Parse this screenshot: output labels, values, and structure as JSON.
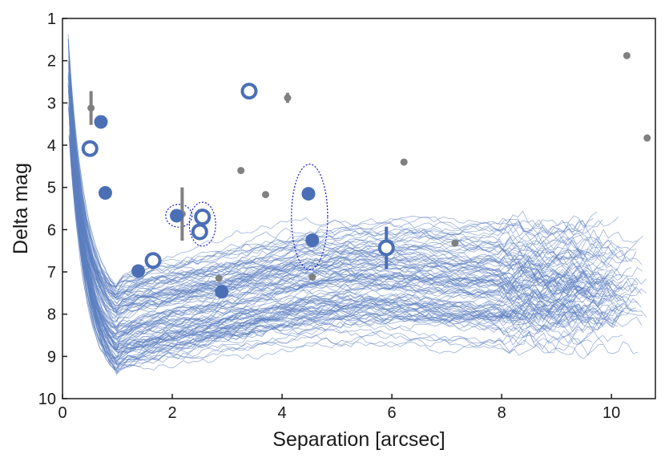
{
  "chart_data": {
    "type": "scatter",
    "title": "",
    "xlabel": "Separation [arcsec]",
    "ylabel": "Delta mag",
    "xlim": [
      0,
      10.8
    ],
    "ylim": [
      1,
      10
    ],
    "y_inverted": true,
    "x_ticks": [
      0,
      2,
      4,
      6,
      8,
      10
    ],
    "y_ticks": [
      1,
      2,
      3,
      4,
      5,
      6,
      7,
      8,
      9,
      10
    ],
    "grid": false,
    "legend": "none",
    "colors": {
      "contrast_curve": "#5b7fc0",
      "filled_marker": "#4a6fb5",
      "open_marker": "#4a6fb5",
      "gray_marker": "#808080",
      "grouping_ellipse": "#1a1acc",
      "axis": "#1a1a1a"
    },
    "contrast_curves": {
      "description_count": 120,
      "inner_separation": 0.1,
      "knee_separation": 1.0,
      "knee_magnitude_range": [
        7.3,
        9.4
      ],
      "outer_magnitude_range": [
        5.5,
        8.8
      ]
    },
    "series": [
      {
        "name": "filled",
        "marker": "filled-circle",
        "points": [
          {
            "x": 0.7,
            "y": 3.45
          },
          {
            "x": 0.78,
            "y": 5.13
          },
          {
            "x": 1.38,
            "y": 6.98
          },
          {
            "x": 2.08,
            "y": 5.67
          },
          {
            "x": 2.9,
            "y": 7.47
          },
          {
            "x": 4.48,
            "y": 5.15
          },
          {
            "x": 4.55,
            "y": 6.25
          }
        ]
      },
      {
        "name": "open",
        "marker": "open-circle",
        "points": [
          {
            "x": 0.5,
            "y": 4.08
          },
          {
            "x": 1.65,
            "y": 6.73
          },
          {
            "x": 2.5,
            "y": 6.05
          },
          {
            "x": 2.55,
            "y": 5.7
          },
          {
            "x": 3.4,
            "y": 2.72
          },
          {
            "x": 5.9,
            "y": 6.43,
            "yerr_low": 0.5,
            "yerr_high": 0.5
          }
        ]
      },
      {
        "name": "gray",
        "marker": "small-gray-dot",
        "points": [
          {
            "x": 0.52,
            "y": 3.12,
            "yerr_low": 0.4,
            "yerr_high": 0.4
          },
          {
            "x": 2.18,
            "y": 5.63,
            "yerr_low": 0.63,
            "yerr_high": 0.63
          },
          {
            "x": 2.85,
            "y": 7.15
          },
          {
            "x": 3.25,
            "y": 4.6
          },
          {
            "x": 3.7,
            "y": 5.17
          },
          {
            "x": 4.1,
            "y": 2.88,
            "yerr_low": 0.12,
            "yerr_high": 0.12
          },
          {
            "x": 4.55,
            "y": 7.12
          },
          {
            "x": 6.22,
            "y": 4.4
          },
          {
            "x": 7.15,
            "y": 6.32
          },
          {
            "x": 10.28,
            "y": 1.88
          },
          {
            "x": 10.65,
            "y": 3.83
          }
        ]
      }
    ],
    "annotations": [
      {
        "type": "ellipse",
        "cx": 2.12,
        "cy": 5.67,
        "rx": 0.24,
        "ry": 0.27
      },
      {
        "type": "ellipse",
        "cx": 2.55,
        "cy": 5.87,
        "rx": 0.24,
        "ry": 0.52
      },
      {
        "type": "ellipse",
        "cx": 4.5,
        "cy": 5.7,
        "rx": 0.33,
        "ry": 1.25
      }
    ]
  }
}
